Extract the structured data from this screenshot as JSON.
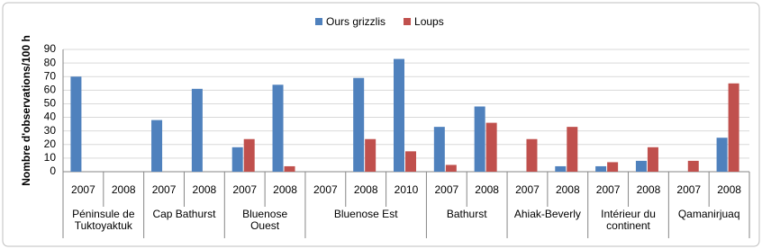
{
  "chart_data": {
    "type": "bar",
    "y_label": "Nombre d'observations/100 h",
    "groups": [
      {
        "label": "Péninsule de Tuktoyaktuk",
        "categories": [
          "2007",
          "2008"
        ]
      },
      {
        "label": "Cap Bathurst",
        "categories": [
          "2007",
          "2008"
        ]
      },
      {
        "label": "Bluenose Ouest",
        "categories": [
          "2007",
          "2008"
        ]
      },
      {
        "label": "Bluenose Est",
        "categories": [
          "2007",
          "2008",
          "2010"
        ]
      },
      {
        "label": "Bathurst",
        "categories": [
          "2007",
          "2008"
        ]
      },
      {
        "label": "Ahiak-Beverly",
        "categories": [
          "2007",
          "2008"
        ]
      },
      {
        "label": "Intérieur du continent",
        "categories": [
          "2007",
          "2008"
        ]
      },
      {
        "label": "Qamanirjuaq",
        "categories": [
          "2007",
          "2008"
        ]
      }
    ],
    "series": [
      {
        "name": "Ours grizzlis",
        "color": "#4f81bd",
        "values": [
          70,
          null,
          38,
          61,
          18,
          64,
          null,
          69,
          83,
          33,
          48,
          null,
          4,
          4,
          8,
          null,
          25
        ]
      },
      {
        "name": "Loups",
        "color": "#c0504d",
        "values": [
          null,
          null,
          null,
          null,
          24,
          4,
          null,
          24,
          15,
          5,
          36,
          24,
          33,
          7,
          18,
          8,
          65
        ]
      }
    ],
    "ylim": [
      0,
      90
    ],
    "yticks": [
      0,
      10,
      20,
      30,
      40,
      50,
      60,
      70,
      80,
      90
    ],
    "grid": true,
    "legend": "top"
  }
}
